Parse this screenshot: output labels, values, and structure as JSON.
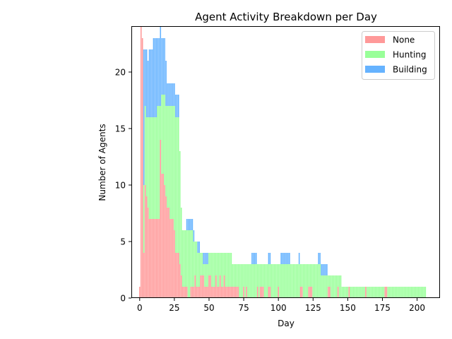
{
  "chart_data": {
    "type": "bar",
    "stacked": true,
    "title": "Agent Activity Breakdown per Day",
    "xlabel": "Day",
    "ylabel": "Number of Agents",
    "xlim": [
      -6,
      216
    ],
    "ylim": [
      0,
      24
    ],
    "xticks": [
      0,
      25,
      50,
      75,
      100,
      125,
      150,
      175,
      200
    ],
    "yticks": [
      0,
      5,
      10,
      15,
      20
    ],
    "legend_position": "top-right",
    "series": [
      {
        "name": "None",
        "color": "#ff9999",
        "values": [
          1,
          24,
          23,
          4,
          10,
          9,
          8,
          7,
          7,
          7,
          7,
          7,
          7,
          7,
          7,
          14,
          11,
          11,
          10,
          9,
          8,
          8,
          7,
          7,
          7,
          6,
          4,
          4,
          4,
          3,
          2,
          1,
          1,
          1,
          1,
          0,
          0,
          1,
          1,
          1,
          2,
          1,
          1,
          1,
          2,
          2,
          2,
          1,
          1,
          1,
          2,
          2,
          1,
          1,
          1,
          2,
          1,
          1,
          2,
          1,
          1,
          2,
          1,
          1,
          1,
          1,
          1,
          1,
          1,
          1,
          1,
          1,
          0,
          0,
          0,
          1,
          0,
          1,
          0,
          0,
          0,
          0,
          0,
          0,
          0,
          1,
          0,
          1,
          1,
          1,
          0,
          0,
          0,
          1,
          1,
          0,
          0,
          0,
          0,
          0,
          1,
          0,
          0,
          0,
          0,
          0,
          0,
          0,
          0,
          0,
          0,
          0,
          0,
          0,
          0,
          0,
          1,
          1,
          0,
          0,
          0,
          0,
          1,
          1,
          1,
          0,
          0,
          0,
          0,
          0,
          0,
          0,
          0,
          0,
          0,
          0,
          1,
          1,
          0,
          0,
          0,
          0,
          0,
          1,
          0,
          0,
          0,
          0,
          0,
          0,
          0,
          1,
          0,
          0,
          0,
          0,
          0,
          0,
          0,
          0,
          0,
          0,
          0,
          1,
          0,
          0,
          0,
          0,
          0,
          0,
          0,
          0,
          0,
          0,
          0,
          0,
          0,
          1,
          1,
          0,
          0,
          0,
          0,
          0,
          0,
          0,
          0,
          0,
          0,
          0,
          0,
          0,
          0,
          0,
          0,
          0,
          0,
          0,
          0,
          0,
          0,
          0,
          0,
          0,
          0,
          0,
          0
        ]
      },
      {
        "name": "Hunting",
        "color": "#99ff99",
        "values": [
          0,
          0,
          0,
          6,
          7,
          7,
          8,
          9,
          9,
          9,
          9,
          9,
          9,
          10,
          10,
          3,
          7,
          7,
          8,
          8,
          9,
          9,
          10,
          10,
          10,
          11,
          12,
          12,
          12,
          10,
          6,
          5,
          5,
          5,
          5,
          6,
          6,
          5,
          5,
          4,
          3,
          4,
          3,
          3,
          2,
          2,
          1,
          2,
          2,
          2,
          2,
          2,
          3,
          3,
          3,
          2,
          3,
          3,
          2,
          3,
          3,
          2,
          3,
          3,
          3,
          3,
          3,
          2,
          2,
          2,
          2,
          2,
          3,
          3,
          3,
          2,
          3,
          2,
          3,
          3,
          3,
          3,
          3,
          3,
          3,
          2,
          3,
          2,
          2,
          2,
          3,
          3,
          3,
          2,
          2,
          3,
          3,
          3,
          3,
          3,
          2,
          3,
          3,
          3,
          3,
          3,
          3,
          3,
          3,
          3,
          3,
          3,
          3,
          3,
          3,
          3,
          2,
          2,
          3,
          3,
          3,
          3,
          2,
          2,
          2,
          3,
          3,
          3,
          3,
          3,
          3,
          2,
          2,
          2,
          2,
          2,
          1,
          1,
          2,
          2,
          2,
          2,
          2,
          1,
          2,
          2,
          1,
          1,
          1,
          1,
          1,
          0,
          1,
          1,
          1,
          1,
          1,
          1,
          1,
          1,
          1,
          1,
          1,
          0,
          1,
          1,
          1,
          1,
          1,
          1,
          1,
          1,
          1,
          1,
          1,
          1,
          1,
          0,
          0,
          1,
          1,
          1,
          1,
          1,
          1,
          1,
          1,
          1,
          1,
          1,
          1,
          1,
          1,
          1,
          1,
          1,
          1,
          1,
          1,
          1,
          1,
          1,
          1,
          1,
          1,
          1,
          1
        ]
      },
      {
        "name": "Building",
        "color": "#66b3ff",
        "values": [
          0,
          0,
          0,
          12,
          5,
          6,
          5,
          6,
          6,
          6,
          7,
          7,
          7,
          6,
          6,
          7,
          5,
          5,
          5,
          4,
          2,
          2,
          2,
          2,
          2,
          2,
          2,
          2,
          2,
          0,
          0,
          0,
          0,
          0,
          1,
          1,
          1,
          1,
          1,
          1,
          0,
          0,
          1,
          1,
          0,
          0,
          1,
          1,
          1,
          1,
          0,
          0,
          0,
          0,
          0,
          0,
          0,
          0,
          0,
          0,
          0,
          0,
          0,
          0,
          0,
          0,
          0,
          0,
          0,
          0,
          0,
          0,
          0,
          0,
          0,
          0,
          0,
          0,
          0,
          0,
          0,
          1,
          1,
          1,
          1,
          0,
          0,
          0,
          0,
          0,
          0,
          0,
          0,
          1,
          1,
          0,
          0,
          0,
          0,
          0,
          0,
          0,
          1,
          1,
          1,
          1,
          1,
          1,
          1,
          0,
          0,
          0,
          0,
          0,
          0,
          1,
          0,
          0,
          0,
          0,
          0,
          0,
          0,
          0,
          0,
          0,
          0,
          0,
          0,
          1,
          1,
          1,
          1,
          1,
          1,
          1,
          0,
          0,
          0,
          0,
          0,
          0,
          0,
          0,
          0,
          0,
          0,
          0,
          0,
          0,
          0,
          0,
          0,
          0,
          0,
          0,
          0,
          0,
          0,
          0,
          0,
          0,
          0,
          0,
          0,
          0,
          0,
          0,
          0,
          0,
          0,
          0,
          0,
          0,
          0,
          0,
          0,
          0,
          0,
          0,
          0,
          0,
          0,
          0,
          0,
          0,
          0,
          0,
          0,
          0,
          0,
          0,
          0,
          0,
          0,
          0,
          0,
          0,
          0,
          0,
          0,
          0,
          0,
          0,
          0,
          0,
          0
        ]
      }
    ]
  }
}
